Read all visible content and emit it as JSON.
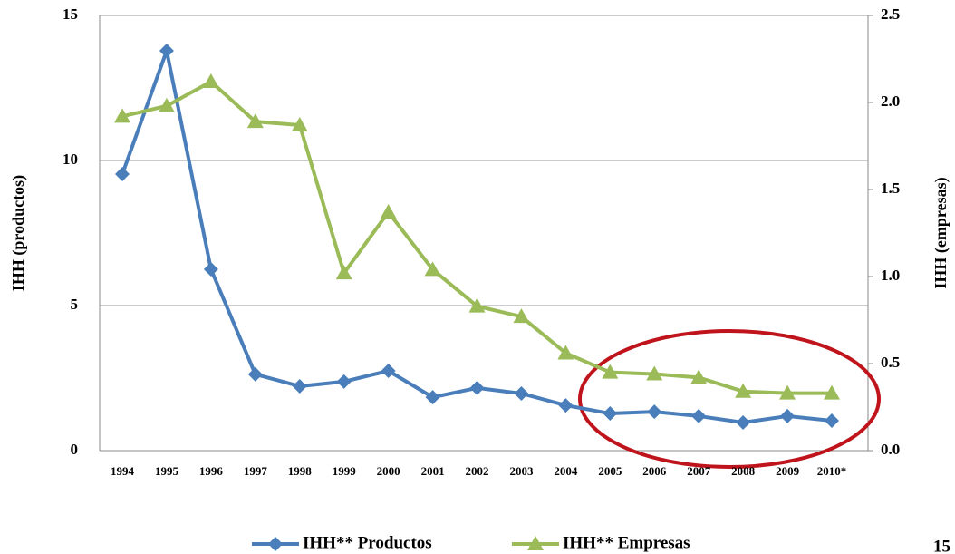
{
  "chart_data": {
    "type": "line",
    "y_label": "IHH (productos)",
    "y2_label": "IHH (empresas)",
    "categories": [
      "1994",
      "1995",
      "1996",
      "1997",
      "1998",
      "1999",
      "2000",
      "2001",
      "2002",
      "2003",
      "2004",
      "2005",
      "2006",
      "2007",
      "2008",
      "2009",
      "2010*"
    ],
    "series": [
      {
        "name": "IHH** Productos",
        "color": "#4a7ebb",
        "marker": "diamond",
        "values": [
          9.53,
          13.78,
          6.25,
          2.63,
          2.22,
          2.38,
          2.75,
          1.84,
          2.16,
          1.97,
          1.56,
          1.28,
          1.34,
          1.19,
          0.97,
          1.19,
          1.03
        ]
      },
      {
        "name": "IHH** Empresas",
        "color": "#9bbb59",
        "marker": "triangle",
        "axis": "y2",
        "values": [
          1.92,
          1.98,
          2.12,
          1.89,
          1.87,
          1.02,
          1.37,
          1.04,
          0.83,
          0.77,
          0.56,
          0.45,
          0.44,
          0.42,
          0.34,
          0.33,
          0.33
        ]
      }
    ],
    "ylim": [
      0,
      15
    ],
    "yticks": [
      0,
      5,
      10,
      15
    ],
    "y2lim": [
      0,
      2.5
    ],
    "y2ticks": [
      {
        "value": 0,
        "label": "0.0"
      },
      {
        "value": 0.5,
        "label": "0.5"
      },
      {
        "value": 1,
        "label": "1.0"
      },
      {
        "value": 1.5,
        "label": "1.5"
      },
      {
        "value": 2,
        "label": "2.0"
      },
      {
        "value": 2.5,
        "label": "2.5"
      }
    ],
    "grid": true,
    "page_number": "15"
  }
}
